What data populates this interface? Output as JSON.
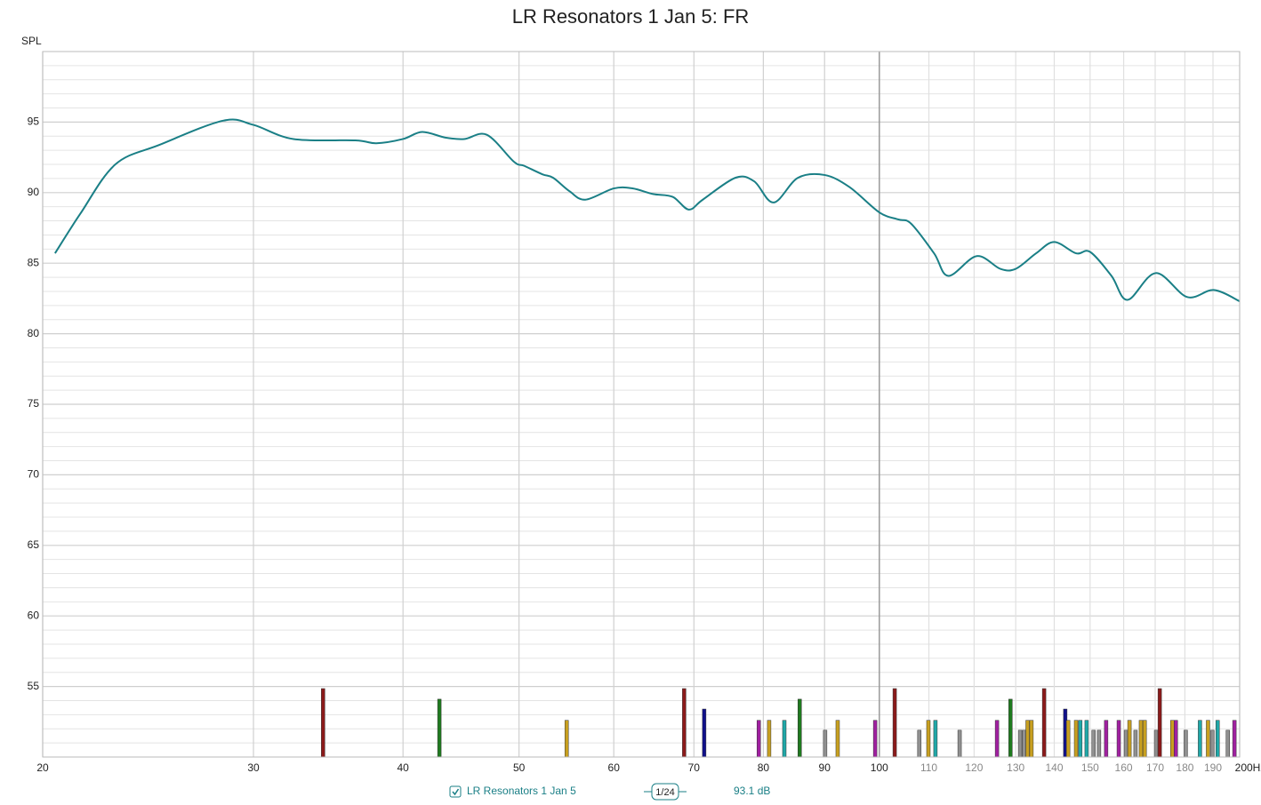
{
  "chart_data": {
    "type": "line",
    "title": "LR Resonators 1 Jan 5: FR",
    "y_label": "SPL",
    "xscale": "log",
    "xlim": [
      20,
      200
    ],
    "ylim": [
      50,
      100
    ],
    "xticks": [
      20,
      30,
      40,
      50,
      60,
      70,
      80,
      90,
      100,
      110,
      120,
      130,
      140,
      150,
      160,
      170,
      180,
      190,
      {
        "value": 200,
        "label": "200Hz"
      }
    ],
    "yticks": [
      55,
      60,
      65,
      70,
      75,
      80,
      85,
      90,
      95
    ],
    "y_minor_ticks": [
      51,
      52,
      53,
      54,
      56,
      57,
      58,
      59,
      61,
      62,
      63,
      64,
      66,
      67,
      68,
      69,
      71,
      72,
      73,
      74,
      76,
      77,
      78,
      79,
      81,
      82,
      83,
      84,
      86,
      87,
      88,
      89,
      91,
      92,
      93,
      94,
      96,
      97,
      98,
      99
    ],
    "grid": true,
    "series": [
      {
        "name": "LR Resonators 1 Jan 5",
        "color": "#1a7f86",
        "x": [
          20.48,
          21.5,
          23.0,
          25.06,
          28.3,
          30,
          32.4,
          36.5,
          38.0,
          40,
          41.5,
          43.4,
          45.0,
          47.0,
          49.5,
          50.5,
          52.3,
          53.4,
          55.1,
          56.8,
          60,
          62.2,
          64.7,
          67.2,
          69.3,
          71.2,
          75.8,
          78.6,
          81.6,
          85.5,
          90,
          94.4,
          100,
          103.7,
          106.3,
          111.1,
          114.2,
          120.6,
          126.2,
          130,
          135.2,
          140,
          146,
          150,
          156.3,
          161.2,
          170.2,
          180.8,
          190.3,
          200
        ],
        "values": [
          85.7,
          88.5,
          92.0,
          93.4,
          95.1,
          94.8,
          93.8,
          93.7,
          93.5,
          93.8,
          94.3,
          93.9,
          93.8,
          94.1,
          92.2,
          91.9,
          91.3,
          91.05,
          90.1,
          89.5,
          90.3,
          90.3,
          89.9,
          89.7,
          88.8,
          89.5,
          91.05,
          90.8,
          89.3,
          91.05,
          91.25,
          90.4,
          88.6,
          88.1,
          87.8,
          85.7,
          84.1,
          85.5,
          84.6,
          84.6,
          85.7,
          86.5,
          85.7,
          85.8,
          84.1,
          82.4,
          84.3,
          82.6,
          83.1,
          82.3
        ]
      }
    ],
    "modes": {
      "x": [
        34.3,
        42.9,
        54.8,
        68.7,
        71.4,
        79.3,
        80.9,
        83.3,
        85.8,
        90.1,
        92.3,
        99.2,
        103,
        108,
        109.9,
        111.4,
        116.7,
        125.4,
        128.7,
        131.1,
        132.1,
        133,
        134,
        137.3,
        143,
        143.8,
        146,
        147.2,
        149,
        151,
        152.6,
        154.7,
        158.5,
        160.7,
        161.8,
        163.7,
        165.4,
        166.6,
        170.3,
        171.5,
        175.7,
        176.9,
        180.3,
        185.3,
        188.2,
        189.8,
        191.7,
        195.5,
        198
      ],
      "values": [
        54.85,
        54.1,
        52.6,
        54.85,
        53.4,
        52.6,
        52.6,
        52.6,
        54.1,
        51.9,
        52.6,
        52.6,
        54.85,
        51.9,
        52.6,
        52.6,
        51.9,
        52.6,
        54.1,
        51.9,
        51.9,
        52.6,
        52.6,
        54.85,
        53.4,
        52.6,
        52.6,
        52.6,
        52.6,
        51.9,
        51.9,
        52.6,
        52.6,
        51.9,
        52.6,
        51.9,
        52.6,
        52.6,
        51.9,
        54.85,
        52.6,
        52.6,
        51.9,
        52.6,
        52.6,
        51.9,
        52.6,
        51.9,
        52.6
      ],
      "colors": [
        "#8b1a1a",
        "#1f7a1f",
        "#c8a020",
        "#8b1a1a",
        "#10108a",
        "#a020a0",
        "#c8a020",
        "#20a8a8",
        "#1f7a1f",
        "#909090",
        "#c8a020",
        "#a020a0",
        "#8b1a1a",
        "#909090",
        "#c8a020",
        "#20a8a8",
        "#909090",
        "#a020a0",
        "#1f7a1f",
        "#909090",
        "#909090",
        "#c8a020",
        "#c8a020",
        "#8b1a1a",
        "#10108a",
        "#c8a020",
        "#c8a020",
        "#20a8a8",
        "#20a8a8",
        "#909090",
        "#909090",
        "#a020a0",
        "#a020a0",
        "#909090",
        "#c8a020",
        "#909090",
        "#c8a020",
        "#c8a020",
        "#909090",
        "#8b1a1a",
        "#c8a020",
        "#a020a0",
        "#909090",
        "#20a8a8",
        "#c8a020",
        "#909090",
        "#20a8a8",
        "#909090",
        "#a020a0"
      ]
    },
    "smoothing": "1/24",
    "readout": "93.1 dB"
  }
}
